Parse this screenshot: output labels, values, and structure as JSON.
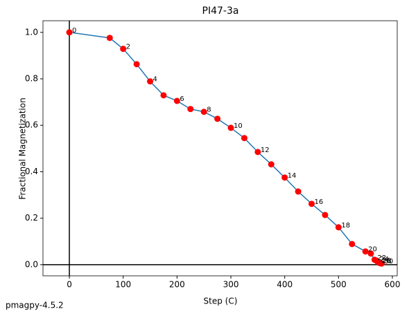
{
  "chart_data": {
    "type": "line",
    "title": "PI47-3a",
    "xlabel": "Step (C)",
    "ylabel": "Fractional Magnetization",
    "x": [
      0,
      75,
      100,
      125,
      150,
      175,
      200,
      225,
      250,
      275,
      300,
      325,
      350,
      375,
      400,
      425,
      450,
      475,
      500,
      525,
      550,
      560,
      567,
      570,
      572,
      574,
      575,
      576,
      577,
      578,
      580
    ],
    "series": [
      {
        "color": "#1f77b4",
        "marker_color": "#ff0000",
        "values": [
          1.0,
          0.976,
          0.929,
          0.863,
          0.789,
          0.729,
          0.705,
          0.67,
          0.658,
          0.628,
          0.589,
          0.545,
          0.485,
          0.432,
          0.375,
          0.315,
          0.262,
          0.214,
          0.161,
          0.089,
          0.057,
          0.048,
          0.021,
          0.018,
          0.014,
          0.011,
          0.009,
          0.008,
          0.007,
          0.006,
          0.005
        ],
        "point_labels": [
          "0",
          null,
          "2",
          null,
          "4",
          null,
          "6",
          null,
          "8",
          null,
          "10",
          null,
          "12",
          null,
          "14",
          null,
          "16",
          null,
          "18",
          null,
          "20",
          null,
          "22",
          null,
          "24",
          null,
          "26",
          null,
          "28",
          null,
          "30"
        ]
      }
    ],
    "xlim": [
      -49,
      609
    ],
    "ylim": [
      -0.048,
      1.05
    ],
    "xticks": [
      0,
      100,
      200,
      300,
      400,
      500,
      600
    ],
    "yticks": [
      {
        "value": 0,
        "label": "0.0"
      },
      {
        "value": 0.2,
        "label": "0.2"
      },
      {
        "value": 0.4,
        "label": "0.4"
      },
      {
        "value": 0.6,
        "label": "0.6"
      },
      {
        "value": 0.8,
        "label": "0.8"
      },
      {
        "value": 1.0,
        "label": "1.0"
      }
    ],
    "zero_lines": true
  },
  "footer": "pmagpy-4.5.2"
}
